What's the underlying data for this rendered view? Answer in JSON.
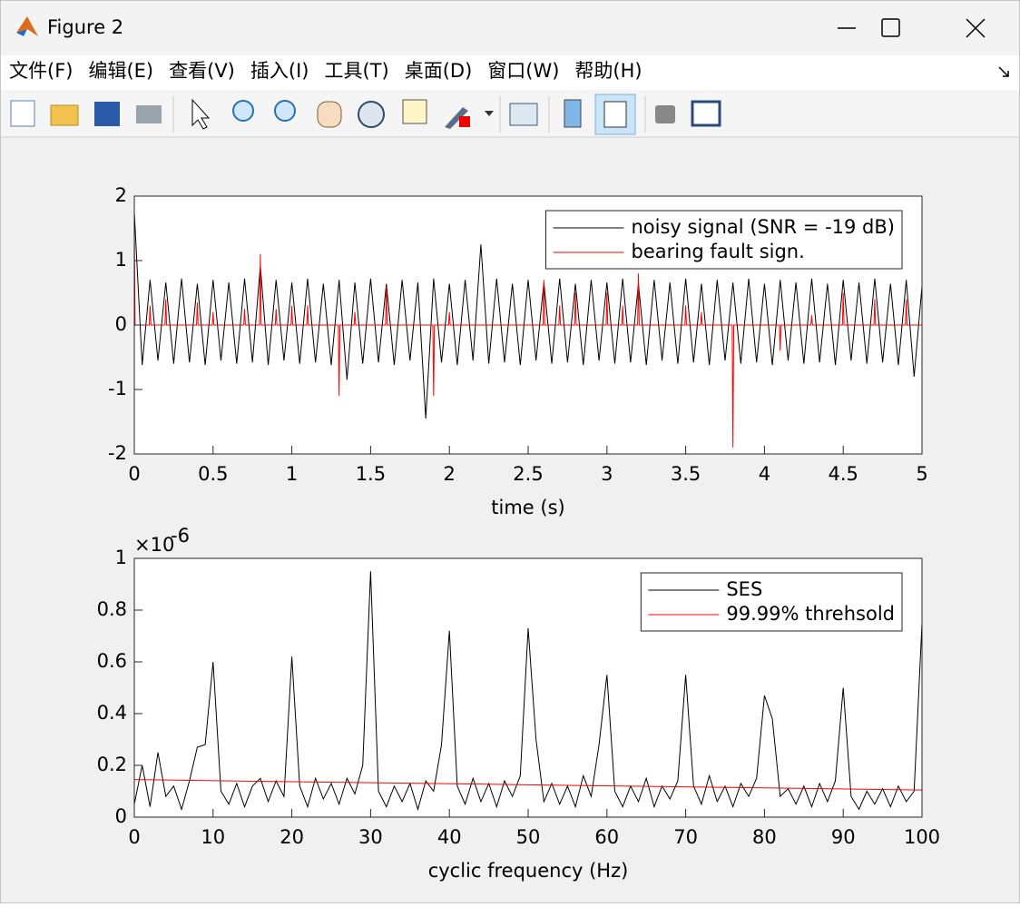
{
  "window": {
    "title": "Figure 2"
  },
  "menu": [
    "文件(F)",
    "编辑(E)",
    "查看(V)",
    "插入(I)",
    "工具(T)",
    "桌面(D)",
    "窗口(W)",
    "帮助(H)"
  ],
  "chart_data": [
    {
      "type": "line",
      "xlabel": "time (s)",
      "xlim": [
        0,
        5
      ],
      "xticks": [
        0,
        0.5,
        1,
        1.5,
        2,
        2.5,
        3,
        3.5,
        4,
        4.5,
        5
      ],
      "ylim": [
        -2,
        2
      ],
      "yticks": [
        -2,
        -1,
        0,
        1,
        2
      ],
      "legend": "northeast",
      "series": [
        {
          "name": "noisy signal (SNR = -19 dB)",
          "color": "#000000",
          "x": [
            0,
            0.05,
            0.1,
            0.15,
            0.2,
            0.25,
            0.3,
            0.35,
            0.4,
            0.45,
            0.5,
            0.55,
            0.6,
            0.65,
            0.7,
            0.75,
            0.8,
            0.85,
            0.9,
            0.95,
            1,
            1.05,
            1.1,
            1.15,
            1.2,
            1.25,
            1.3,
            1.35,
            1.4,
            1.45,
            1.5,
            1.55,
            1.6,
            1.65,
            1.7,
            1.75,
            1.8,
            1.85,
            1.9,
            1.95,
            2,
            2.05,
            2.1,
            2.15,
            2.2,
            2.25,
            2.3,
            2.35,
            2.4,
            2.45,
            2.5,
            2.55,
            2.6,
            2.65,
            2.7,
            2.75,
            2.8,
            2.85,
            2.9,
            2.95,
            3,
            3.05,
            3.1,
            3.15,
            3.2,
            3.25,
            3.3,
            3.35,
            3.4,
            3.45,
            3.5,
            3.55,
            3.6,
            3.65,
            3.7,
            3.75,
            3.8,
            3.85,
            3.9,
            3.95,
            4,
            4.05,
            4.1,
            4.15,
            4.2,
            4.25,
            4.3,
            4.35,
            4.4,
            4.45,
            4.5,
            4.55,
            4.6,
            4.65,
            4.7,
            4.75,
            4.8,
            4.85,
            4.9,
            4.95,
            5
          ],
          "values": [
            1.75,
            -0.62,
            0.7,
            -0.55,
            0.66,
            -0.6,
            0.72,
            -0.58,
            0.64,
            -0.62,
            0.7,
            -0.55,
            0.66,
            -0.6,
            0.72,
            -0.58,
            0.92,
            -0.62,
            0.7,
            -0.55,
            0.66,
            -0.6,
            0.72,
            -0.58,
            0.64,
            -0.62,
            0.7,
            -0.85,
            0.66,
            -0.6,
            0.72,
            -0.58,
            0.64,
            -0.62,
            0.7,
            -0.55,
            0.66,
            -1.45,
            0.72,
            -0.58,
            0.64,
            -0.62,
            0.7,
            -0.55,
            1.25,
            -0.6,
            0.72,
            -0.58,
            0.64,
            -0.62,
            0.7,
            -0.55,
            0.66,
            -0.6,
            0.72,
            -0.58,
            0.64,
            -0.62,
            0.7,
            -0.55,
            0.66,
            -0.6,
            0.72,
            -0.58,
            0.64,
            -0.62,
            0.7,
            -0.55,
            0.66,
            -0.6,
            0.72,
            -0.58,
            0.64,
            -0.62,
            0.7,
            -0.55,
            0.66,
            -0.6,
            0.72,
            -0.58,
            0.64,
            -0.62,
            0.7,
            -0.55,
            0.66,
            -0.6,
            0.72,
            -0.58,
            0.64,
            -0.62,
            0.7,
            -0.55,
            0.66,
            -0.6,
            0.72,
            -0.58,
            0.64,
            -0.62,
            0.7,
            -0.8,
            0.6
          ]
        },
        {
          "name": "bearing fault sign.",
          "color": "#ff0000",
          "x": [
            0,
            0.005,
            0.095,
            0.1,
            0.105,
            0.195,
            0.2,
            0.205,
            0.395,
            0.4,
            0.405,
            0.495,
            0.5,
            0.505,
            0.695,
            0.7,
            0.705,
            0.795,
            0.8,
            0.805,
            0.895,
            0.9,
            0.905,
            0.995,
            1,
            1.005,
            1.095,
            1.1,
            1.105,
            1.295,
            1.3,
            1.305,
            1.395,
            1.4,
            1.405,
            1.595,
            1.6,
            1.605,
            1.895,
            1.9,
            1.905,
            1.995,
            2,
            2.005,
            2.595,
            2.6,
            2.605,
            2.695,
            2.7,
            2.705,
            2.795,
            2.8,
            2.805,
            2.995,
            3,
            3.005,
            3.095,
            3.1,
            3.105,
            3.195,
            3.2,
            3.205,
            3.495,
            3.5,
            3.505,
            3.595,
            3.6,
            3.605,
            3.795,
            3.8,
            3.805,
            4.095,
            4.1,
            4.105,
            4.295,
            4.3,
            4.305,
            4.495,
            4.5,
            4.505,
            4.695,
            4.7,
            4.705,
            4.895,
            4.9,
            4.905,
            5
          ],
          "values": [
            1.5,
            0,
            0,
            0.3,
            0,
            0,
            0.4,
            0,
            0,
            0.35,
            0,
            0,
            0.2,
            0,
            0,
            0.25,
            0,
            0,
            1.1,
            0,
            0,
            0.25,
            0,
            0,
            0.3,
            0,
            0,
            0.3,
            0,
            0,
            -1.1,
            0,
            0,
            0.2,
            0,
            0,
            0.6,
            0,
            0,
            -1.1,
            0,
            0,
            0.2,
            0,
            0,
            0.7,
            0,
            0,
            0.3,
            0,
            0,
            0.5,
            0,
            0,
            0.5,
            0,
            0,
            0.3,
            0,
            0,
            0.8,
            0,
            0,
            0.3,
            0,
            0,
            0.2,
            0,
            0,
            -1.9,
            0,
            0,
            -0.4,
            0,
            0,
            0.15,
            0,
            0,
            0.5,
            0,
            0,
            0.4,
            0,
            0,
            0.4,
            0,
            0
          ]
        }
      ]
    },
    {
      "type": "line",
      "xlabel": "cyclic frequency (Hz)",
      "y_multiplier": "×10",
      "y_exponent": "-6",
      "xlim": [
        0,
        100
      ],
      "xticks": [
        0,
        10,
        20,
        30,
        40,
        50,
        60,
        70,
        80,
        90,
        100
      ],
      "ylim": [
        0,
        1
      ],
      "yticks": [
        0,
        0.2,
        0.4,
        0.6,
        0.8,
        1
      ],
      "legend": "northeast",
      "series": [
        {
          "name": "SES",
          "color": "#000000",
          "x": [
            0,
            1,
            2,
            3,
            4,
            5,
            6,
            7,
            8,
            9,
            10,
            11,
            12,
            13,
            14,
            15,
            16,
            17,
            18,
            19,
            20,
            21,
            22,
            23,
            24,
            25,
            26,
            27,
            28,
            29,
            30,
            31,
            32,
            33,
            34,
            35,
            36,
            37,
            38,
            39,
            40,
            41,
            42,
            43,
            44,
            45,
            46,
            47,
            48,
            49,
            50,
            51,
            52,
            53,
            54,
            55,
            56,
            57,
            58,
            59,
            60,
            61,
            62,
            63,
            64,
            65,
            66,
            67,
            68,
            69,
            70,
            71,
            72,
            73,
            74,
            75,
            76,
            77,
            78,
            79,
            80,
            81,
            82,
            83,
            84,
            85,
            86,
            87,
            88,
            89,
            90,
            91,
            92,
            93,
            94,
            95,
            96,
            97,
            98,
            99,
            100
          ],
          "values": [
            0.05,
            0.2,
            0.04,
            0.25,
            0.08,
            0.12,
            0.03,
            0.14,
            0.27,
            0.28,
            0.6,
            0.1,
            0.05,
            0.13,
            0.04,
            0.12,
            0.15,
            0.06,
            0.14,
            0.08,
            0.62,
            0.12,
            0.04,
            0.15,
            0.07,
            0.13,
            0.05,
            0.15,
            0.09,
            0.2,
            0.95,
            0.1,
            0.04,
            0.12,
            0.06,
            0.13,
            0.03,
            0.14,
            0.1,
            0.28,
            0.72,
            0.12,
            0.05,
            0.15,
            0.06,
            0.13,
            0.04,
            0.14,
            0.08,
            0.16,
            0.73,
            0.3,
            0.06,
            0.13,
            0.05,
            0.12,
            0.04,
            0.16,
            0.08,
            0.28,
            0.55,
            0.1,
            0.04,
            0.12,
            0.06,
            0.15,
            0.04,
            0.12,
            0.07,
            0.14,
            0.55,
            0.12,
            0.05,
            0.16,
            0.06,
            0.12,
            0.04,
            0.13,
            0.08,
            0.15,
            0.47,
            0.38,
            0.08,
            0.11,
            0.05,
            0.12,
            0.04,
            0.13,
            0.06,
            0.14,
            0.5,
            0.08,
            0.03,
            0.1,
            0.05,
            0.11,
            0.04,
            0.12,
            0.06,
            0.1,
            0.75
          ]
        },
        {
          "name": "99.99% threhsold",
          "color": "#ff0000",
          "x": [
            0,
            100
          ],
          "values": [
            0.145,
            0.105
          ]
        }
      ]
    }
  ]
}
